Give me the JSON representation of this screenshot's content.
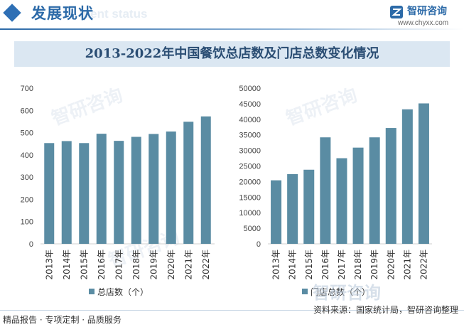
{
  "header": {
    "title": "发展现状",
    "ghost_text": "ment status",
    "logo_name": "智研咨询",
    "logo_url": "www.chyxx.com"
  },
  "title": "2013-2022年中国餐饮总店数及门店总数变化情况",
  "watermarks": {
    "brand": "智研咨询"
  },
  "footer": {
    "left": "精品报告 · 专项定制 · 品质服务",
    "source": "资料来源：国家统计局，智研咨询整理"
  },
  "colors": {
    "bar": "#5a8ca3",
    "header_blue": "#2c6aa8",
    "title_bg": "#dbe7f2"
  },
  "chart_data": [
    {
      "type": "bar",
      "categories": [
        "2013年",
        "2014年",
        "2015年",
        "2016年",
        "2017年",
        "2018年",
        "2019年",
        "2020年",
        "2021年",
        "2022年"
      ],
      "series": [
        {
          "name": "总店数（个）",
          "values": [
            453,
            462,
            453,
            495,
            463,
            481,
            494,
            505,
            549,
            573
          ]
        }
      ],
      "yticks": [
        0,
        100,
        200,
        300,
        400,
        500,
        600,
        700
      ],
      "ylim": [
        0,
        700
      ],
      "legend": "bottom",
      "grid": false
    },
    {
      "type": "bar",
      "categories": [
        "2013年",
        "2014年",
        "2015年",
        "2016年",
        "2017年",
        "2018年",
        "2019年",
        "2020年",
        "2021年",
        "2022年"
      ],
      "series": [
        {
          "name": "门店总数（个）",
          "values": [
            20400,
            22400,
            23800,
            34200,
            27500,
            30900,
            34200,
            37200,
            43200,
            45100
          ]
        }
      ],
      "yticks": [
        0,
        5000,
        10000,
        15000,
        20000,
        25000,
        30000,
        35000,
        40000,
        45000,
        50000
      ],
      "ylim": [
        0,
        50000
      ],
      "legend": "bottom",
      "grid": false
    }
  ]
}
